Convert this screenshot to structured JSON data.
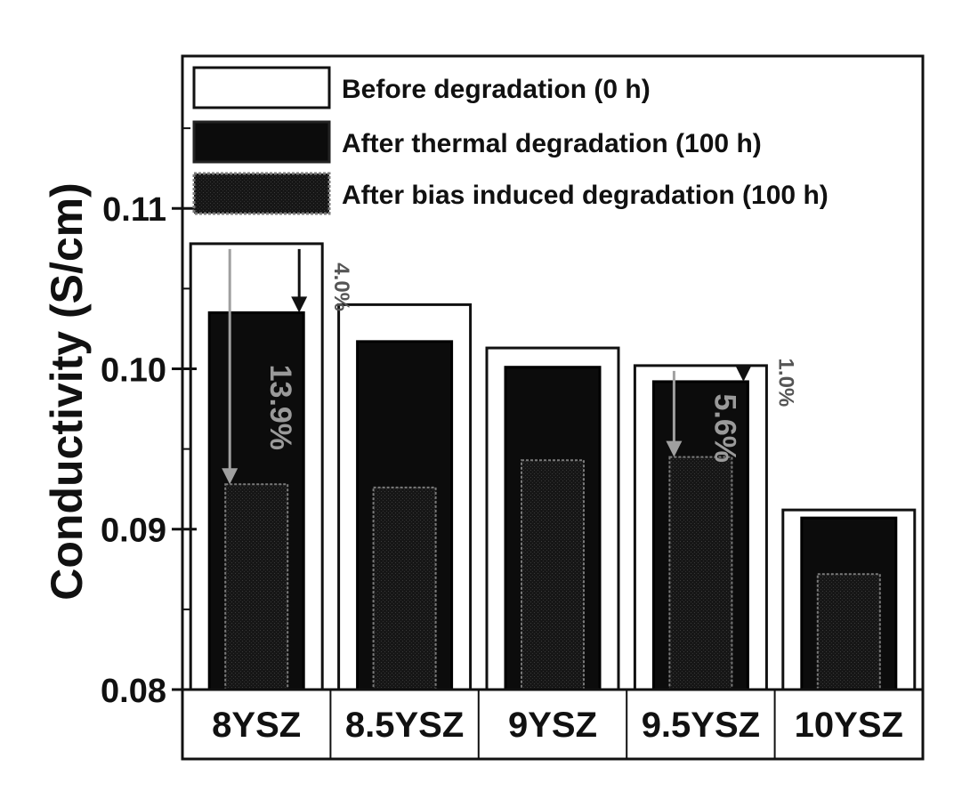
{
  "chart_data": {
    "type": "bar",
    "title": "",
    "xlabel": "",
    "ylabel": "Conductivity (S/cm)",
    "ylim": [
      0.08,
      0.1195
    ],
    "yticks": [
      "0.08",
      "0.09",
      "0.10",
      "0.11"
    ],
    "grid": false,
    "legend_position": "top-left",
    "categories": [
      "8YSZ",
      "8.5YSZ",
      "9YSZ",
      "9.5YSZ",
      "10YSZ"
    ],
    "series": [
      {
        "name": "Before degradation (0 h)",
        "values": [
          0.1078,
          0.104,
          0.1013,
          0.1002,
          0.0912
        ]
      },
      {
        "name": "After thermal degradation (100 h)",
        "values": [
          0.1035,
          0.1017,
          0.1001,
          0.0992,
          0.0907
        ]
      },
      {
        "name": "After bias induced degradation (100 h)",
        "values": [
          0.0928,
          0.0926,
          0.0943,
          0.0945,
          0.0872
        ]
      }
    ],
    "annotations": [
      {
        "text": "4.0%",
        "category": "8YSZ",
        "kind": "thermal-drop"
      },
      {
        "text": "13.9%",
        "category": "8YSZ",
        "kind": "bias-drop"
      },
      {
        "text": "1.0%",
        "category": "9.5YSZ",
        "kind": "thermal-drop"
      },
      {
        "text": "5.6%",
        "category": "9.5YSZ",
        "kind": "bias-drop"
      }
    ],
    "colors": {
      "before_fill": "#ffffff",
      "thermal_fill": "#0c0c0c",
      "bias_fill": "#1a1a1a",
      "bias_outline": "#7a7a7a",
      "axis": "#111111",
      "annotation_light": "#9a9a9a"
    }
  }
}
